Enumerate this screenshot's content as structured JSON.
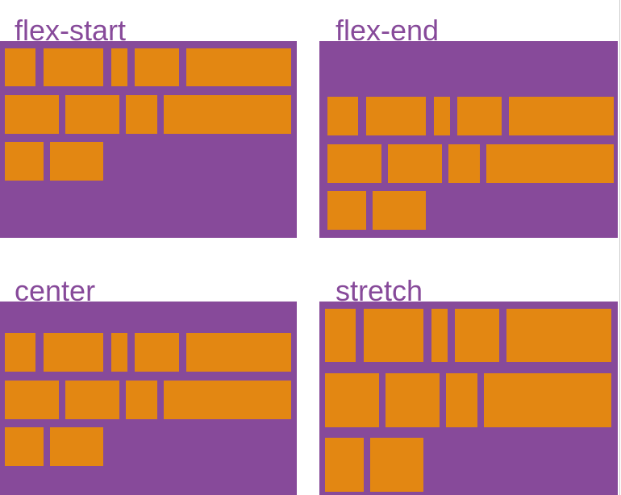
{
  "panels": [
    {
      "label": "flex-start"
    },
    {
      "label": "flex-end"
    },
    {
      "label": "center"
    },
    {
      "label": "stretch"
    }
  ]
}
